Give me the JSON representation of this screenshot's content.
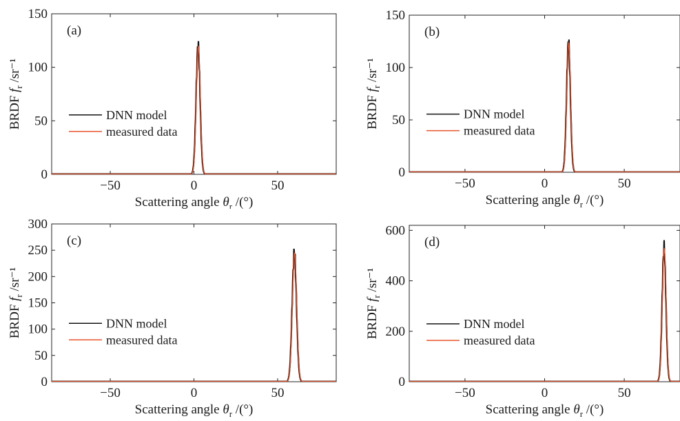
{
  "chart_data": [
    {
      "type": "line",
      "panel_label": "(a)",
      "xlabel": "Scattering angle θr /(°)",
      "ylabel": "BRDF fr /sr⁻¹",
      "xlim": [
        -85,
        85
      ],
      "ylim": [
        0,
        150
      ],
      "xticks": [
        -50,
        0,
        50
      ],
      "yticks": [
        0,
        50,
        100,
        150
      ],
      "legend": "center-left",
      "peak": {
        "center": 2.5,
        "amplitude": 120,
        "sigma": 1.2
      },
      "series": [
        {
          "name": "DNN model",
          "color": "#111111"
        },
        {
          "name": "measured data",
          "color": "#e8532b"
        }
      ]
    },
    {
      "type": "line",
      "panel_label": "(b)",
      "xlabel": "Scattering angle θr /(°)",
      "ylabel": "BRDF fr /sr⁻¹",
      "xlim": [
        -85,
        85
      ],
      "ylim": [
        0,
        150
      ],
      "xticks": [
        -50,
        0,
        50
      ],
      "yticks": [
        0,
        50,
        100,
        150
      ],
      "legend": "center-left",
      "peak": {
        "center": 15,
        "amplitude": 124,
        "sigma": 1.2
      },
      "series": [
        {
          "name": "DNN model",
          "color": "#111111"
        },
        {
          "name": "measured data",
          "color": "#e8532b"
        }
      ]
    },
    {
      "type": "line",
      "panel_label": "(c)",
      "xlabel": "Scattering angle θr /(°)",
      "ylabel": "BRDF fr /sr⁻¹",
      "xlim": [
        -85,
        85
      ],
      "ylim": [
        0,
        300
      ],
      "xticks": [
        -50,
        0,
        50
      ],
      "yticks": [
        0,
        50,
        100,
        150,
        200,
        250,
        300
      ],
      "legend": "center-left",
      "peak": {
        "center": 60,
        "amplitude": 245,
        "sigma": 1.3
      },
      "series": [
        {
          "name": "DNN model",
          "color": "#111111"
        },
        {
          "name": "measured data",
          "color": "#e8532b"
        }
      ]
    },
    {
      "type": "line",
      "panel_label": "(d)",
      "xlabel": "Scattering angle θr /(°)",
      "ylabel": "BRDF fr /sr⁻¹",
      "xlim": [
        -85,
        85
      ],
      "ylim": [
        0,
        620
      ],
      "xticks": [
        -50,
        0,
        50
      ],
      "yticks": [
        0,
        200,
        400,
        600
      ],
      "legend": "center-left",
      "peak": {
        "center": 75,
        "amplitude": 530,
        "sigma": 1.2
      },
      "series": [
        {
          "name": "DNN model",
          "color": "#111111"
        },
        {
          "name": "measured data",
          "color": "#e8532b"
        }
      ]
    }
  ]
}
